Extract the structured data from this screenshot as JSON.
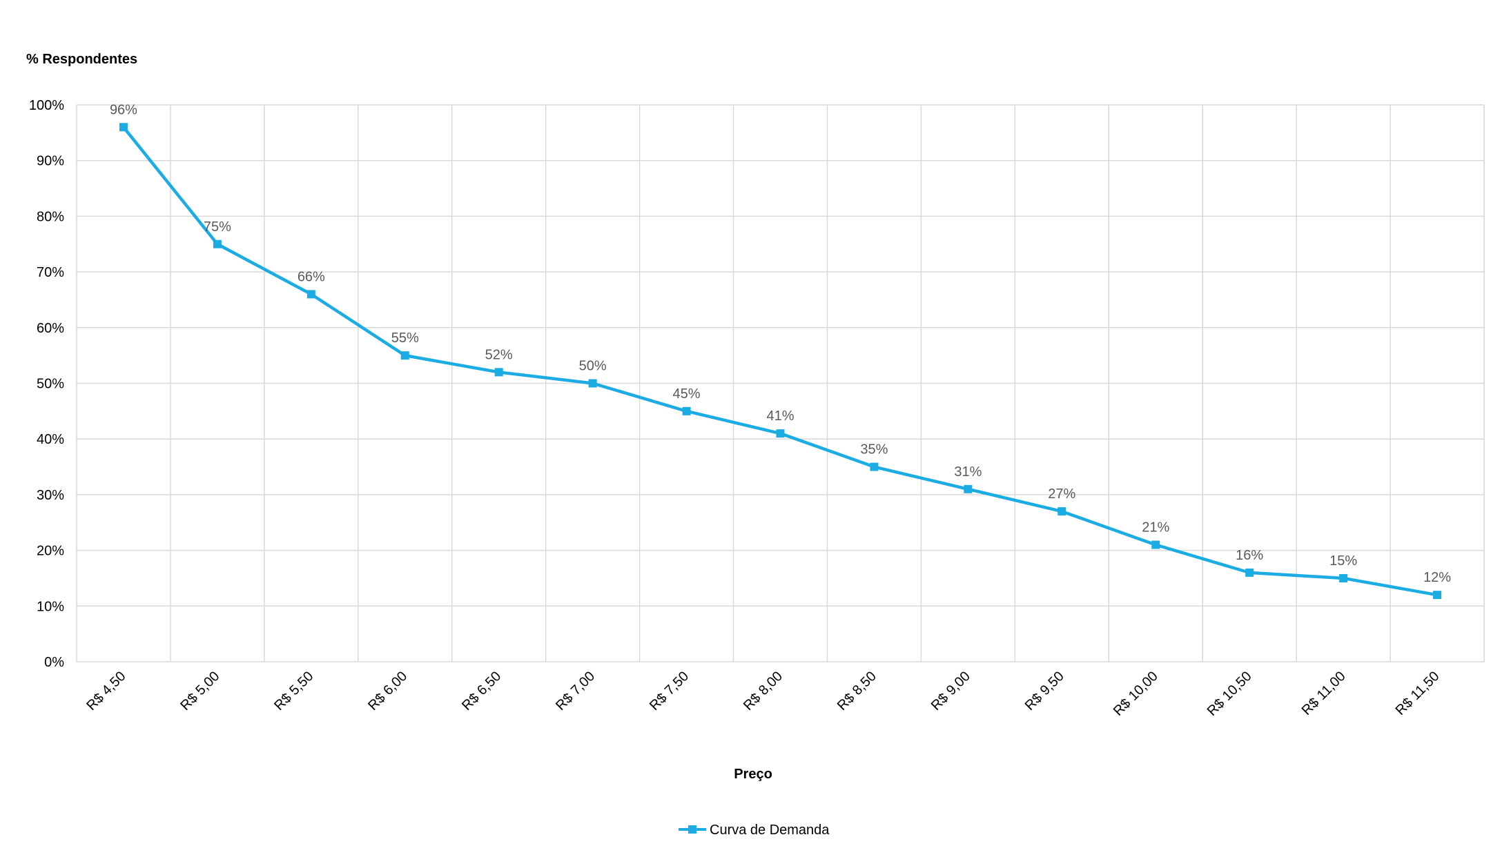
{
  "chart_data": {
    "type": "line",
    "ylabel": "% Respondentes",
    "xlabel": "Preço",
    "categories": [
      "R$ 4,50",
      "R$ 5,00",
      "R$ 5,50",
      "R$ 6,00",
      "R$ 6,50",
      "R$ 7,00",
      "R$ 7,50",
      "R$ 8,00",
      "R$ 8,50",
      "R$ 9,00",
      "R$ 9,50",
      "R$ 10,00",
      "R$ 10,50",
      "R$ 11,00",
      "R$ 11,50"
    ],
    "series": [
      {
        "name": "Curva de Demanda",
        "color": "#1aace2",
        "values": [
          96,
          75,
          66,
          55,
          52,
          50,
          45,
          41,
          35,
          31,
          27,
          21,
          16,
          15,
          12
        ],
        "labels": [
          "96%",
          "75%",
          "66%",
          "55%",
          "52%",
          "50%",
          "45%",
          "41%",
          "35%",
          "31%",
          "27%",
          "21%",
          "16%",
          "15%",
          "12%"
        ]
      }
    ],
    "ylim": [
      0,
      100
    ],
    "yticks": [
      "0%",
      "10%",
      "20%",
      "30%",
      "40%",
      "50%",
      "60%",
      "70%",
      "80%",
      "90%",
      "100%"
    ],
    "grid": true,
    "legend_position": "bottom"
  }
}
